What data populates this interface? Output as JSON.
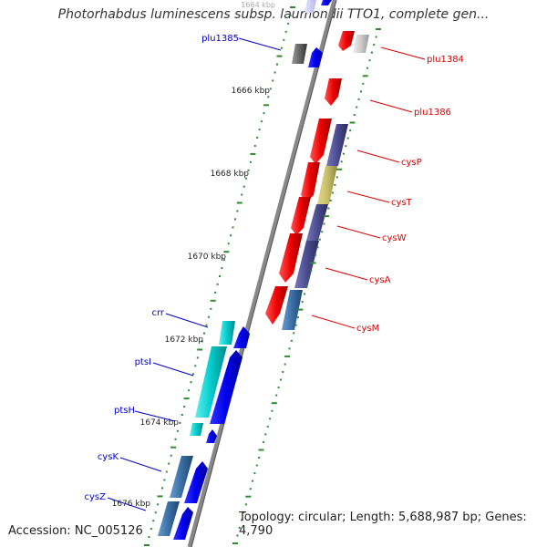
{
  "title": "Photorhabdus luminescens subsp. laumondii TTO1, complete gen...",
  "footer": {
    "accession": "Accession: NC_005126",
    "topology": "Topology: circular; Length: 5,688,987 bp; Genes: 4,790"
  },
  "colors": {
    "forward_label": "#0000cc",
    "reverse_label": "#dd0000",
    "backbone": "#888888",
    "tick": "#2e8b2e"
  },
  "position_labels": [
    "1664 kbp",
    "1666 kbp",
    "1668 kbp",
    "1670 kbp",
    "1672 kbp",
    "1674 kbp",
    "1676 kbp"
  ],
  "features": [
    {
      "name": "plu1385",
      "strand": "forward",
      "color": "#0000ee"
    },
    {
      "name": "crr",
      "strand": "forward",
      "color": "#00cccc"
    },
    {
      "name": "ptsI",
      "strand": "forward",
      "color": "#00cccc"
    },
    {
      "name": "ptsH",
      "strand": "forward",
      "color": "#00cccc"
    },
    {
      "name": "cysK",
      "strand": "forward",
      "color": "#3a6ea5"
    },
    {
      "name": "cysZ",
      "strand": "forward",
      "color": "#3a6ea5"
    },
    {
      "name": "plu1384",
      "strand": "reverse",
      "color": "#ee0000"
    },
    {
      "name": "plu1386",
      "strand": "reverse",
      "color": "#ee0000"
    },
    {
      "name": "cysP",
      "strand": "reverse",
      "color": "#ee0000"
    },
    {
      "name": "cysT",
      "strand": "reverse",
      "color": "#ee0000"
    },
    {
      "name": "cysW",
      "strand": "reverse",
      "color": "#ee0000"
    },
    {
      "name": "cysA",
      "strand": "reverse",
      "color": "#ee0000"
    },
    {
      "name": "cysM",
      "strand": "reverse",
      "color": "#ee0000"
    }
  ]
}
